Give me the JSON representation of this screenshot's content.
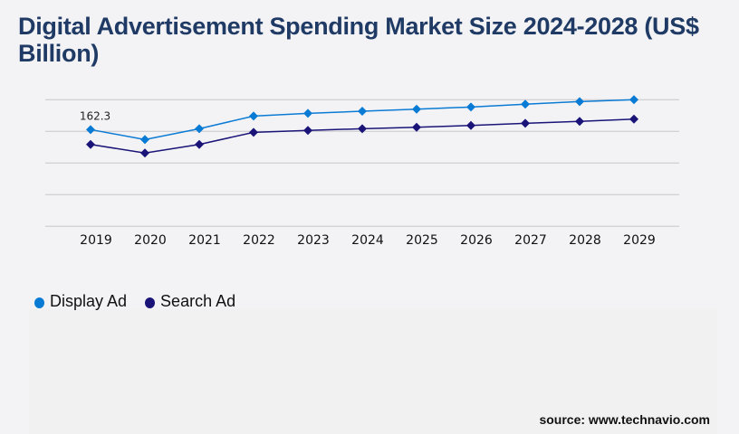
{
  "title": "Digital Advertisement Spending Market Size 2024-2028 (US$ Billion)",
  "source": "source: www.technavio.com",
  "chart_data": {
    "type": "line",
    "title": "Digital Advertisement Spending Market Size 2024-2028 (US$ Billion)",
    "xlabel": "",
    "ylabel": "",
    "categories": [
      "2019",
      "2020",
      "2021",
      "2022",
      "2023",
      "2024",
      "2025",
      "2026",
      "2027",
      "2028",
      "2029"
    ],
    "ylim": [
      0,
      212.4
    ],
    "yticks_labeled": false,
    "grid": true,
    "legend_position": "bottom-left",
    "series": [
      {
        "name": "Display Ad",
        "color": "#0a7bd4",
        "values": [
          162.3,
          145.6,
          163.8,
          185.0,
          189.6,
          193.1,
          196.6,
          200.2,
          204.8,
          209.3,
          212.4
        ]
      },
      {
        "name": "Search Ad",
        "color": "#1a1478",
        "values": [
          137.4,
          122.9,
          137.4,
          157.7,
          160.8,
          163.8,
          166.2,
          169.3,
          172.9,
          176.0,
          179.9
        ]
      }
    ],
    "data_labels": [
      {
        "series": "Display Ad",
        "category": "2019",
        "text": "162.3"
      }
    ]
  }
}
